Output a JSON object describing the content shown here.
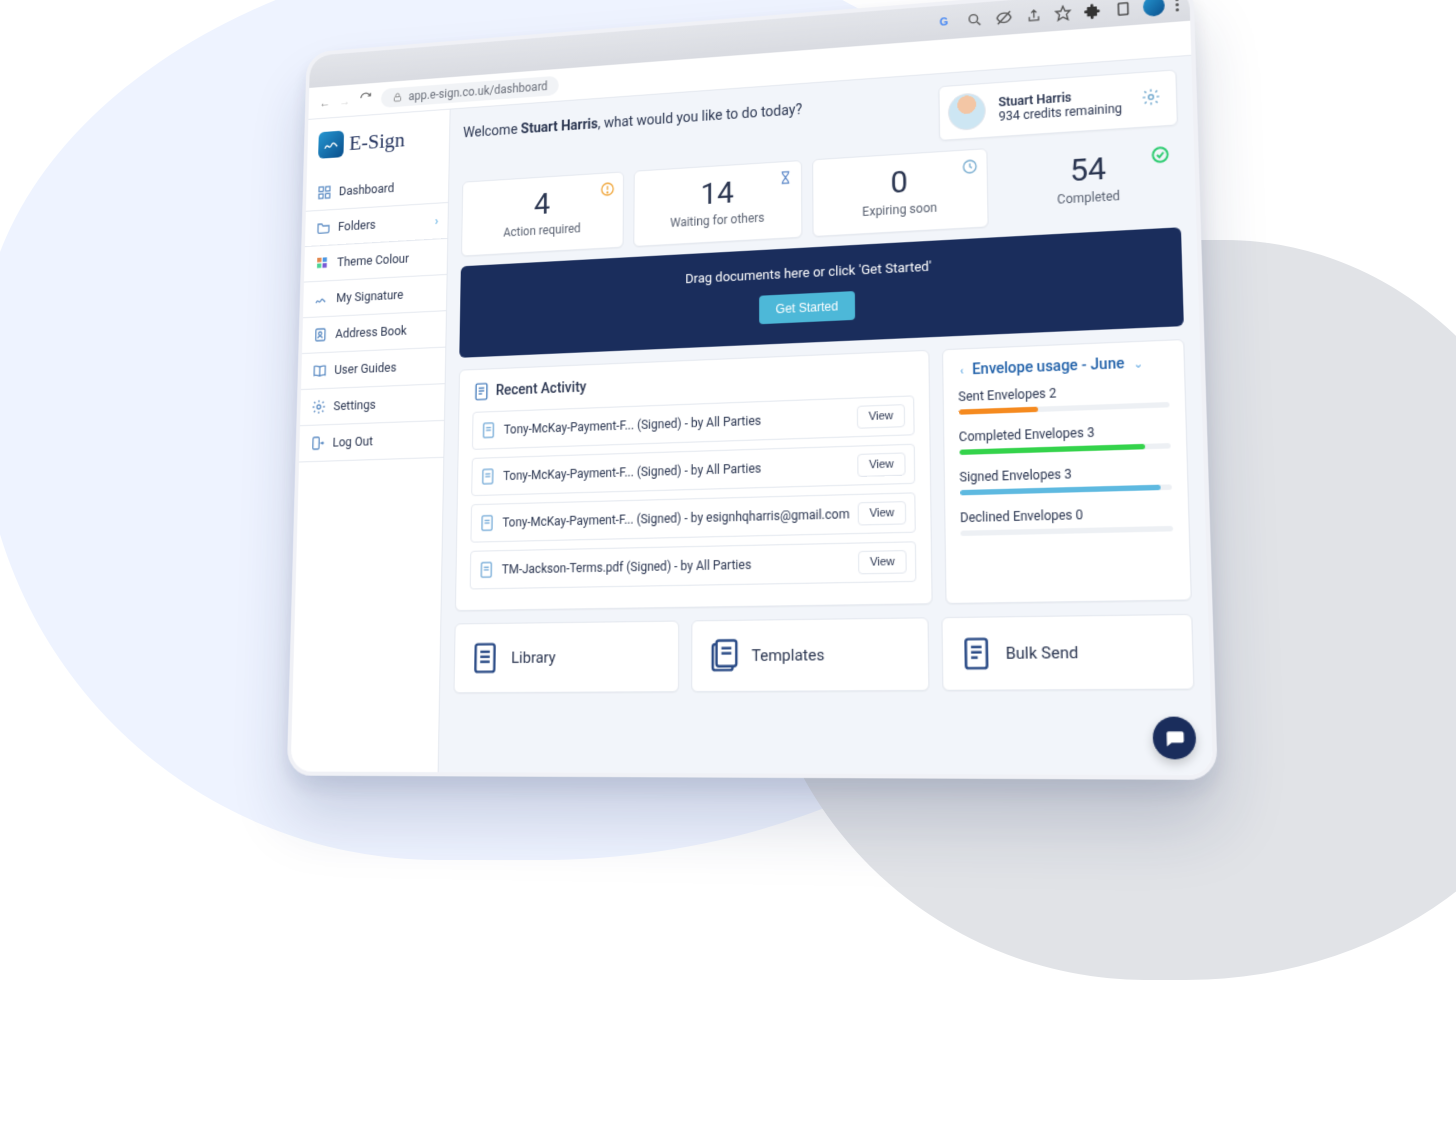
{
  "browser": {
    "url": "app.e-sign.co.uk/dashboard"
  },
  "brand": {
    "name": "E-Sign"
  },
  "sidebar": {
    "items": [
      {
        "label": "Dashboard",
        "icon": "dashboard"
      },
      {
        "label": "Folders",
        "icon": "folder",
        "expandable": true
      },
      {
        "label": "Theme Colour",
        "icon": "palette"
      },
      {
        "label": "My Signature",
        "icon": "signature"
      },
      {
        "label": "Address Book",
        "icon": "contacts"
      },
      {
        "label": "User Guides",
        "icon": "book"
      },
      {
        "label": "Settings",
        "icon": "gear"
      },
      {
        "label": "Log Out",
        "icon": "logout"
      }
    ]
  },
  "header": {
    "welcome_prefix": "Welcome ",
    "welcome_name": "Stuart Harris",
    "welcome_suffix": ", what would you like to do today?",
    "user_name": "Stuart Harris",
    "credits_line": "934 credits remaining"
  },
  "stats": [
    {
      "value": "4",
      "label": "Action required",
      "icon": "alert",
      "icon_color": "#f0a63a"
    },
    {
      "value": "14",
      "label": "Waiting for others",
      "icon": "hourglass",
      "icon_color": "#5a86c7"
    },
    {
      "value": "0",
      "label": "Expiring soon",
      "icon": "clock",
      "icon_color": "#7aaed1"
    },
    {
      "value": "54",
      "label": "Completed",
      "icon": "check",
      "icon_color": "#2ecc71"
    }
  ],
  "dropzone": {
    "text": "Drag documents here or click 'Get Started'",
    "button": "Get Started"
  },
  "recent": {
    "title": "Recent Activity",
    "items": [
      {
        "text": "Tony-McKay-Payment-F... (Signed) - by All Parties",
        "action": "View"
      },
      {
        "text": "Tony-McKay-Payment-F... (Signed) - by All Parties",
        "action": "View"
      },
      {
        "text": "Tony-McKay-Payment-F... (Signed) - by esignhqharris@gmail.com",
        "action": "View"
      },
      {
        "text": "TM-Jackson-Terms.pdf (Signed) - by All Parties",
        "action": "View"
      }
    ]
  },
  "usage": {
    "title": "Envelope usage - June",
    "metrics": [
      {
        "label": "Sent Envelopes 2",
        "pct": 38,
        "color": "#f58a1f"
      },
      {
        "label": "Completed Envelopes 3",
        "pct": 88,
        "color": "#34d34b"
      },
      {
        "label": "Signed Envelopes 3",
        "pct": 95,
        "color": "#5eb9e0"
      },
      {
        "label": "Declined Envelopes 0",
        "pct": 0,
        "color": "#808894"
      }
    ]
  },
  "tiles": [
    {
      "label": "Library"
    },
    {
      "label": "Templates"
    },
    {
      "label": "Bulk Send"
    }
  ],
  "colors": {
    "navy": "#1a2d5c",
    "cyan": "#4db8d8"
  }
}
